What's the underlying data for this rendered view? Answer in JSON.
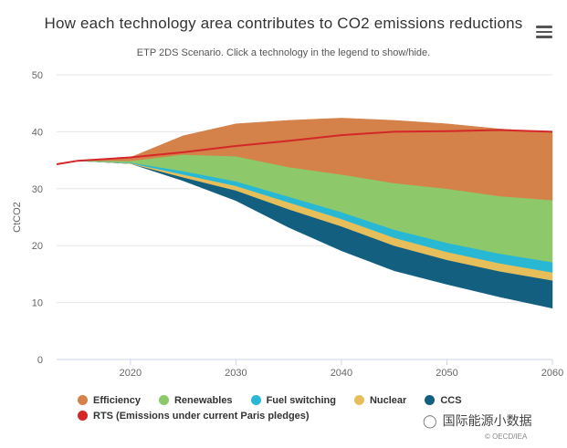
{
  "chart_data": {
    "type": "area",
    "title": "How each technology area contributes to CO2 emissions reductions",
    "subtitle": "ETP 2DS Scenario. Click a technology in the legend to show/hide.",
    "xlabel": "",
    "ylabel": "CtCO2",
    "ylim": [
      0,
      50
    ],
    "xlim": [
      2013,
      2060
    ],
    "yticks": [
      0,
      10,
      20,
      30,
      40,
      50
    ],
    "xticks": [
      2020,
      2030,
      2040,
      2050,
      2060
    ],
    "grid": true,
    "x": [
      2013,
      2014,
      2015,
      2020,
      2025,
      2030,
      2035,
      2040,
      2045,
      2050,
      2055,
      2060
    ],
    "series": [
      {
        "name": "Efficiency",
        "color": "#d4814a",
        "values": [
          0,
          0,
          0,
          0.6,
          3.3,
          5.7,
          8.2,
          9.9,
          11.0,
          11.4,
          11.8,
          11.9
        ]
      },
      {
        "name": "Renewables",
        "color": "#8dc86a",
        "values": [
          0,
          0,
          0,
          0.3,
          2.9,
          4.4,
          5.2,
          6.6,
          8.2,
          9.5,
          10.1,
          10.9
        ]
      },
      {
        "name": "Fuel switching",
        "color": "#29b8d4",
        "values": [
          0,
          0,
          0,
          0.1,
          0.6,
          0.8,
          1.0,
          1.2,
          1.4,
          1.6,
          1.7,
          1.8
        ]
      },
      {
        "name": "Nuclear",
        "color": "#e6be5a",
        "values": [
          0,
          0,
          0,
          0.1,
          0.5,
          0.8,
          1.2,
          1.3,
          1.4,
          1.4,
          1.4,
          1.4
        ]
      },
      {
        "name": "CCS",
        "color": "#125f80",
        "values": [
          0,
          0,
          0,
          0,
          0.6,
          1.8,
          3.2,
          4.3,
          4.4,
          4.3,
          4.5,
          4.9
        ]
      }
    ],
    "base_values": [
      34.3,
      34.6,
      34.9,
      34.4,
      31.4,
      27.9,
      23.2,
      19.1,
      15.6,
      13.2,
      11.0,
      9.0
    ],
    "line_series": {
      "name": "RTS (Emissions under current Paris pledges)",
      "color": "#d42828",
      "values": [
        34.3,
        34.6,
        34.9,
        35.5,
        36.4,
        37.5,
        38.4,
        39.4,
        40.0,
        40.1,
        40.3,
        40.0
      ]
    },
    "legend": {
      "placement": "bottom-left"
    }
  },
  "watermark": "国际能源小数据",
  "copyright": "© OECD/IEA",
  "menu_icon": "hamburger-menu-icon"
}
